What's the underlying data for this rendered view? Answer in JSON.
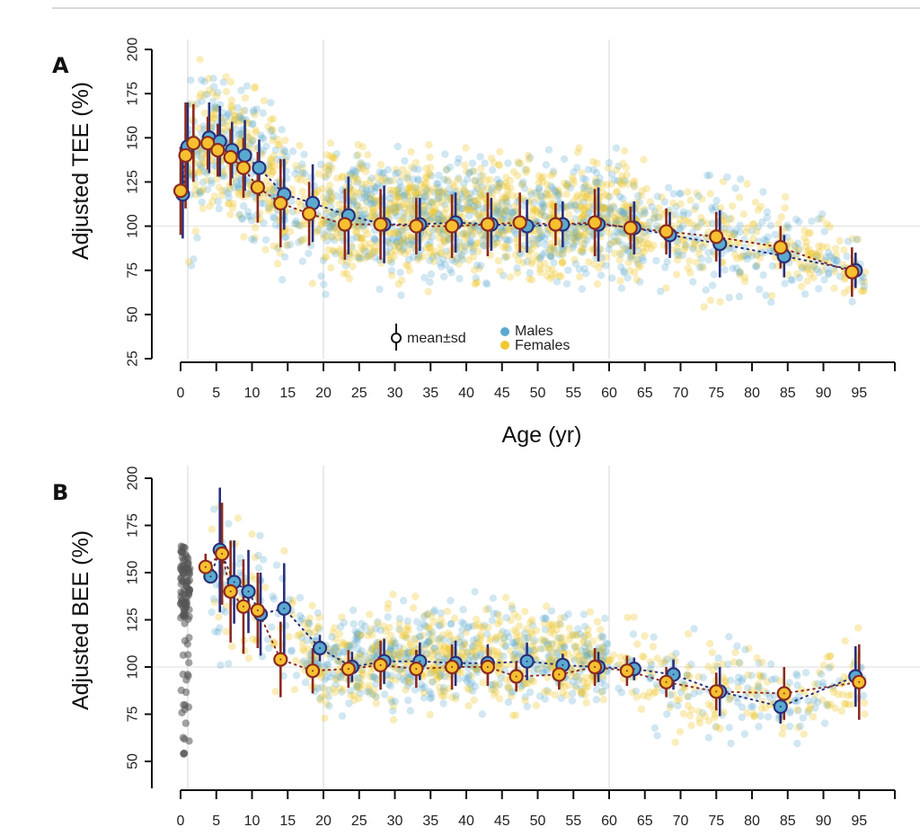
{
  "chart_data": [
    {
      "panel": "A",
      "type": "scatter",
      "title": "",
      "panel_label": "A",
      "ylabel": "Adjusted TEE (%)",
      "xlabel": "Age (yr)",
      "xlim": [
        0,
        100
      ],
      "ylim": [
        25,
        200
      ],
      "xticks": [
        0,
        5,
        10,
        15,
        20,
        25,
        30,
        35,
        40,
        45,
        50,
        55,
        60,
        65,
        70,
        75,
        80,
        85,
        90,
        95,
        100
      ],
      "xtick_labels": [
        "0",
        "5",
        "10",
        "15",
        "20",
        "25",
        "30",
        "35",
        "40",
        "45",
        "50",
        "55",
        "60",
        "65",
        "70",
        "75",
        "80",
        "85",
        "90",
        "95",
        ""
      ],
      "yticks": [
        25,
        50,
        75,
        100,
        125,
        150,
        175,
        200
      ],
      "ytick_labels": [
        "25",
        "50",
        "75",
        "100",
        "125",
        "150",
        "175",
        "200"
      ],
      "vertical_reference_lines": [
        1,
        20,
        60
      ],
      "horizontal_reference_line": 100,
      "legend": {
        "position": "bottom-center",
        "items": [
          {
            "label": "mean±sd",
            "marker": "open-circle-with-bar"
          },
          {
            "label": "Males",
            "color": "#5aaad0"
          },
          {
            "label": "Females",
            "color": "#f0c830"
          }
        ]
      },
      "series": [
        {
          "name": "Males",
          "color": "#5aaad0",
          "mean_color": "#5aaad0",
          "edge_color": "#2a2f7a",
          "x": [
            0.3,
            1.0,
            4.0,
            5.5,
            7.2,
            9.0,
            11.0,
            14.5,
            18.5,
            23.5,
            28.5,
            33.5,
            38.5,
            43.5,
            48.5,
            53.5,
            58.5,
            63.5,
            68.5,
            75.5,
            84.5,
            94.5
          ],
          "mean": [
            118,
            145,
            150,
            148,
            143,
            140,
            133,
            118,
            113,
            106,
            101,
            101,
            102,
            101,
            100,
            101,
            101,
            99,
            95,
            90,
            83,
            75
          ],
          "sd": [
            25,
            25,
            20,
            20,
            16,
            20,
            16,
            20,
            22,
            22,
            22,
            15,
            17,
            15,
            15,
            13,
            21,
            15,
            13,
            19,
            12,
            10
          ]
        },
        {
          "name": "Females",
          "color": "#f0c830",
          "mean_color": "#f6c030",
          "edge_color": "#8b2a1e",
          "x": [
            0.0,
            0.7,
            1.8,
            3.8,
            5.2,
            7.0,
            8.8,
            10.8,
            14.0,
            18.0,
            23.0,
            28.0,
            33.0,
            38.0,
            43.0,
            47.5,
            52.5,
            58.0,
            63.0,
            68.0,
            75.0,
            84.0,
            94.0
          ],
          "mean": [
            120,
            140,
            147,
            147,
            143,
            139,
            133,
            122,
            113,
            107,
            101,
            101,
            100,
            100,
            101,
            102,
            101,
            102,
            99,
            97,
            94,
            88,
            74
          ],
          "sd": [
            25,
            30,
            22,
            15,
            15,
            16,
            17,
            20,
            25,
            18,
            20,
            20,
            16,
            18,
            18,
            17,
            12,
            19,
            12,
            13,
            14,
            12,
            14
          ]
        }
      ],
      "scatter_cloud": {
        "description": "individual participants, semi-transparent points",
        "males_color": "#5aaad0",
        "females_color": "#f0c830",
        "envelope": [
          {
            "age": 1,
            "lo": 75,
            "hi": 200
          },
          {
            "age": 5,
            "lo": 105,
            "hi": 190
          },
          {
            "age": 10,
            "lo": 90,
            "hi": 180
          },
          {
            "age": 15,
            "lo": 70,
            "hi": 160
          },
          {
            "age": 20,
            "lo": 65,
            "hi": 150
          },
          {
            "age": 30,
            "lo": 65,
            "hi": 145
          },
          {
            "age": 45,
            "lo": 68,
            "hi": 140
          },
          {
            "age": 60,
            "lo": 68,
            "hi": 140
          },
          {
            "age": 70,
            "lo": 60,
            "hi": 135
          },
          {
            "age": 80,
            "lo": 55,
            "hi": 125
          },
          {
            "age": 88,
            "lo": 60,
            "hi": 110
          },
          {
            "age": 96,
            "lo": 55,
            "hi": 90
          }
        ]
      }
    },
    {
      "panel": "B",
      "type": "scatter",
      "title": "",
      "panel_label": "B",
      "ylabel": "Adjusted BEE (%)",
      "xlabel": "",
      "xlim": [
        0,
        100
      ],
      "ylim": [
        40,
        200
      ],
      "xticks": [
        0,
        5,
        10,
        15,
        20,
        25,
        30,
        35,
        40,
        45,
        50,
        55,
        60,
        65,
        70,
        75,
        80,
        85,
        90,
        95,
        100
      ],
      "xtick_labels": [
        "0",
        "5",
        "10",
        "15",
        "20",
        "25",
        "30",
        "35",
        "40",
        "45",
        "50",
        "55",
        "60",
        "65",
        "70",
        "75",
        "80",
        "85",
        "90",
        "95",
        ""
      ],
      "yticks": [
        50,
        75,
        100,
        125,
        150,
        175,
        200
      ],
      "ytick_labels": [
        "50",
        "75",
        "100",
        "125",
        "150",
        "175",
        "200"
      ],
      "vertical_reference_lines": [
        1,
        20,
        60
      ],
      "horizontal_reference_line": 100,
      "series": [
        {
          "name": "Males",
          "color": "#5aaad0",
          "mean_color": "#5aaad0",
          "edge_color": "#2a2f7a",
          "x": [
            4.2,
            5.5,
            7.5,
            9.5,
            11.2,
            14.5,
            19.5,
            24.0,
            28.5,
            33.5,
            38.5,
            43.0,
            48.5,
            53.5,
            58.5,
            63.5,
            69.0,
            75.5,
            84.0,
            94.5
          ],
          "mean": [
            148,
            162,
            145,
            140,
            128,
            131,
            110,
            100,
            103,
            103,
            102,
            102,
            103,
            101,
            100,
            99,
            96,
            87,
            79,
            95
          ],
          "sd": [
            0,
            33,
            22,
            22,
            22,
            24,
            7,
            8,
            12,
            10,
            12,
            10,
            10,
            6,
            8,
            6,
            8,
            13,
            9,
            16
          ]
        },
        {
          "name": "Females",
          "color": "#f0c830",
          "mean_color": "#f6c030",
          "edge_color": "#8b2a1e",
          "x": [
            3.5,
            5.8,
            7.0,
            8.8,
            10.8,
            14.0,
            18.5,
            23.5,
            28.0,
            33.0,
            38.0,
            43.0,
            47.0,
            53.0,
            58.0,
            62.5,
            68.0,
            75.0,
            84.5,
            95.0
          ],
          "mean": [
            153,
            160,
            140,
            132,
            130,
            104,
            98,
            99,
            101,
            99,
            100,
            100,
            95,
            96,
            100,
            98,
            92,
            87,
            86,
            92
          ],
          "sd": [
            7,
            27,
            27,
            25,
            20,
            20,
            12,
            10,
            13,
            10,
            12,
            10,
            8,
            8,
            10,
            8,
            8,
            10,
            14,
            20
          ]
        },
        {
          "name": "Infants (unlabeled, grey)",
          "color": "#555555",
          "x_range": [
            0,
            1.3
          ],
          "y_range": [
            54,
            165
          ]
        }
      ],
      "scatter_cloud": {
        "males_color": "#5aaad0",
        "females_color": "#f0c830",
        "envelope": [
          {
            "age": 4,
            "lo": 100,
            "hi": 190
          },
          {
            "age": 10,
            "lo": 95,
            "hi": 175
          },
          {
            "age": 15,
            "lo": 80,
            "hi": 160
          },
          {
            "age": 20,
            "lo": 75,
            "hi": 130
          },
          {
            "age": 30,
            "lo": 75,
            "hi": 135
          },
          {
            "age": 45,
            "lo": 78,
            "hi": 135
          },
          {
            "age": 60,
            "lo": 80,
            "hi": 125
          },
          {
            "age": 70,
            "lo": 62,
            "hi": 120
          },
          {
            "age": 80,
            "lo": 55,
            "hi": 115
          },
          {
            "age": 88,
            "lo": 60,
            "hi": 100
          },
          {
            "age": 96,
            "lo": 55,
            "hi": 125
          }
        ]
      }
    }
  ]
}
